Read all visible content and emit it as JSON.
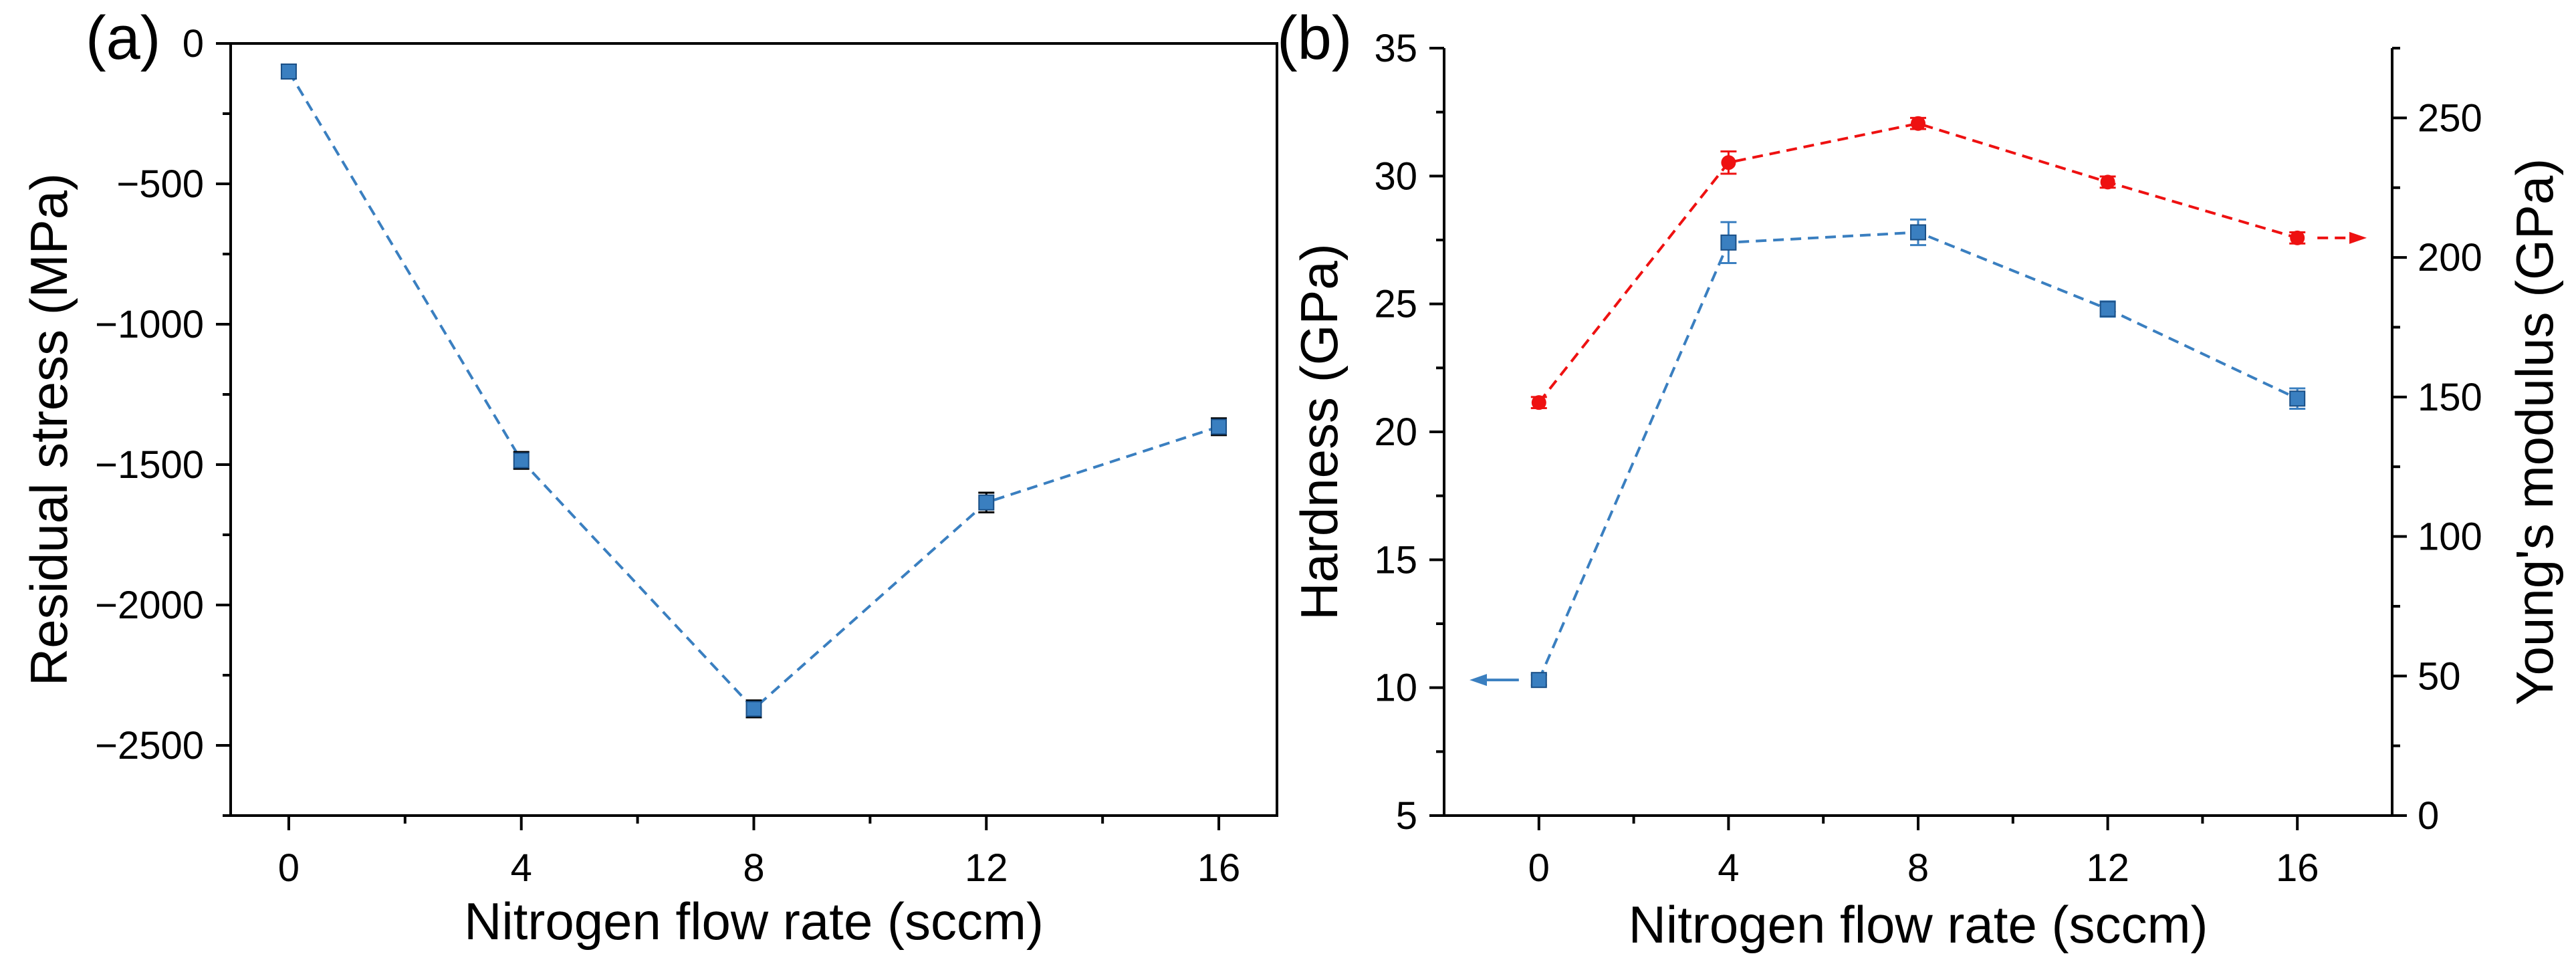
{
  "colors": {
    "blue": "#3a7fc0",
    "red": "#ee1111",
    "axis": "#000000",
    "background": "#ffffff"
  },
  "chart_data": [
    {
      "panel_label": "(a)",
      "type": "line",
      "title": "",
      "xlabel": "Nitrogen flow rate (sccm)",
      "ylabel": "Residual stress (MPa)",
      "x_ticks": [
        "0",
        "4",
        "8",
        "12",
        "16"
      ],
      "y_ticks": [
        "0",
        "-500",
        "-1000",
        "-1500",
        "-2000",
        "-2500"
      ],
      "xlim": [
        -1,
        17
      ],
      "ylim": [
        -2750,
        0
      ],
      "grid": false,
      "series": [
        {
          "name": "Residual stress",
          "color": "#3a7fc0",
          "marker": "square",
          "line_style": "dashed",
          "x": [
            0,
            4,
            8,
            12,
            16
          ],
          "values": [
            -100,
            -1485,
            -2370,
            -1635,
            -1365
          ],
          "errors": [
            25,
            30,
            30,
            35,
            30
          ]
        }
      ]
    },
    {
      "panel_label": "(b)",
      "type": "line",
      "title": "",
      "xlabel": "Nitrogen flow rate (sccm)",
      "ylabel_left": "Hardness (GPa)",
      "ylabel_right": "Young's modulus (GPa)",
      "x_ticks": [
        "0",
        "4",
        "8",
        "12",
        "16"
      ],
      "y_left_ticks": [
        "5",
        "10",
        "15",
        "20",
        "25",
        "30",
        "35"
      ],
      "y_right_ticks": [
        "0",
        "50",
        "100",
        "150",
        "200",
        "250"
      ],
      "xlim": [
        -2,
        18
      ],
      "ylim_left": [
        5,
        35
      ],
      "ylim_right": [
        0,
        275
      ],
      "grid": false,
      "series": [
        {
          "name": "Hardness",
          "axis": "left",
          "color": "#3a7fc0",
          "marker": "square",
          "line_style": "dashed",
          "x": [
            0,
            4,
            8,
            12,
            16
          ],
          "values": [
            10.3,
            27.4,
            27.8,
            24.8,
            21.3
          ],
          "errors": [
            0.2,
            0.8,
            0.5,
            0.3,
            0.4
          ]
        },
        {
          "name": "Young's modulus",
          "axis": "right",
          "color": "#ee1111",
          "marker": "circle",
          "line_style": "dashed",
          "x": [
            0,
            4,
            8,
            12,
            16
          ],
          "values": [
            148,
            234,
            248,
            227,
            207
          ],
          "errors": [
            2,
            4,
            2,
            2,
            2
          ]
        }
      ]
    }
  ]
}
